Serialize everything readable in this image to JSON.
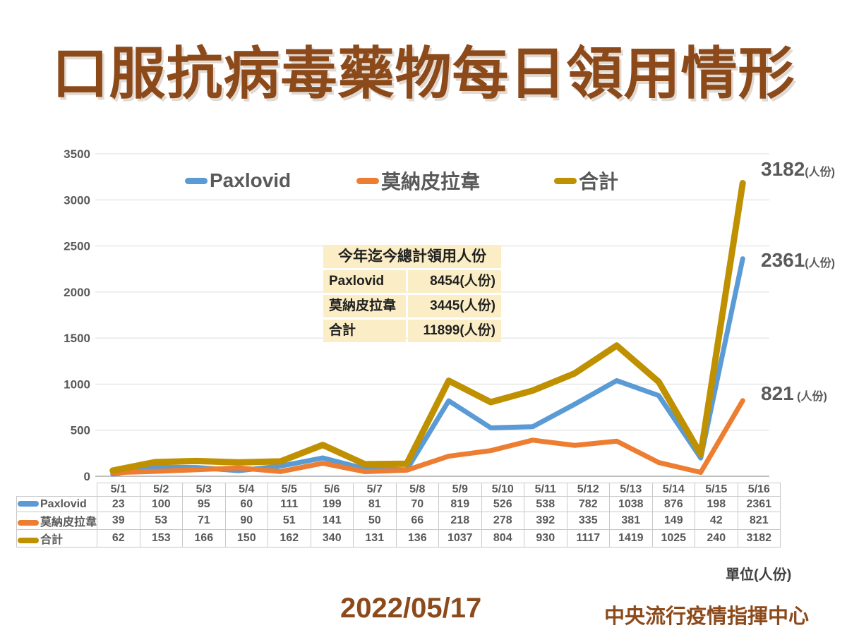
{
  "title": "口服抗病毒藥物每日領用情形",
  "colors": {
    "title_brown": "#8C4A1B",
    "paxlovid_blue": "#5B9BD5",
    "molnupiravir_orange": "#ED7D31",
    "total_gold": "#BF9000",
    "axis_text_gray": "#595959",
    "gridline_gray": "#DCDCDC",
    "summary_bg_cream": "#FBEEC6"
  },
  "chart_data": {
    "type": "line",
    "categories": [
      "5/1",
      "5/2",
      "5/3",
      "5/4",
      "5/5",
      "5/6",
      "5/7",
      "5/8",
      "5/9",
      "5/10",
      "5/11",
      "5/12",
      "5/13",
      "5/14",
      "5/15",
      "5/16"
    ],
    "series": [
      {
        "name": "Paxlovid",
        "color": "#5B9BD5",
        "values": [
          23,
          100,
          95,
          60,
          111,
          199,
          81,
          70,
          819,
          526,
          538,
          782,
          1038,
          876,
          198,
          2361
        ]
      },
      {
        "name": "莫納皮拉韋",
        "color": "#ED7D31",
        "values": [
          39,
          53,
          71,
          90,
          51,
          141,
          50,
          66,
          218,
          278,
          392,
          335,
          381,
          149,
          42,
          821
        ]
      },
      {
        "name": "合計",
        "color": "#BF9000",
        "values": [
          62,
          153,
          166,
          150,
          162,
          340,
          131,
          136,
          1037,
          804,
          930,
          1117,
          1419,
          1025,
          240,
          3182
        ]
      }
    ],
    "title": "口服抗病毒藥物每日領用情形",
    "xlabel": "",
    "ylabel": "",
    "ylim": [
      0,
      3500
    ],
    "ytick_step": 500,
    "grid": true,
    "legend_position": "top",
    "end_labels": [
      {
        "series": "合計",
        "num": "3182",
        "unit": "(人份)"
      },
      {
        "series": "Paxlovid",
        "num": "2361",
        "unit": "(人份)"
      },
      {
        "series": "莫納皮拉韋",
        "num": "821",
        "unit": " (人份)"
      }
    ]
  },
  "summary_box": {
    "title": "今年迄今總計領用人份",
    "rows": [
      {
        "label": "Paxlovid",
        "value": "8454(人份)"
      },
      {
        "label": "莫納皮拉韋",
        "value": "3445(人份)"
      },
      {
        "label": "合計",
        "value": "11899(人份)"
      }
    ]
  },
  "unit_note": "單位(人份)",
  "footer": {
    "date": "2022/05/17",
    "source": "中央流行疫情指揮中心"
  }
}
